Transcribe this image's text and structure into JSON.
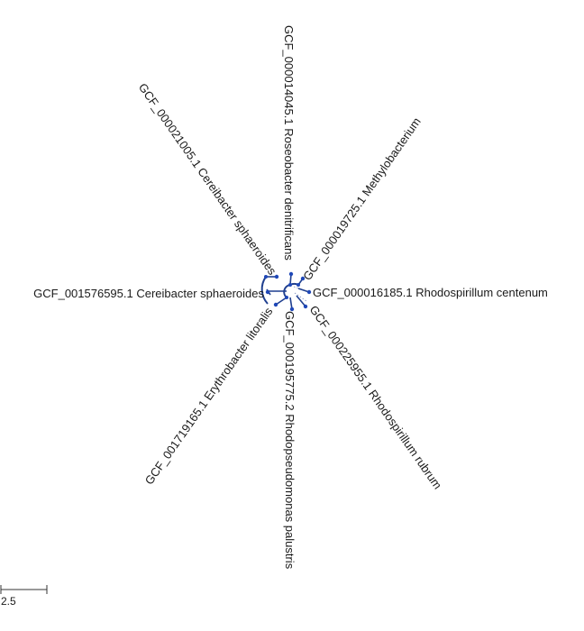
{
  "tree": {
    "leaves": [
      {
        "label": "GCF_000014045.1 Roseobacter denitrificans"
      },
      {
        "label": "GCF_000019725.1  Methylobacterium"
      },
      {
        "label": "GCF_000016185.1 Rhodospirillum centenum"
      },
      {
        "label": "GCF_000225955.1 Rhodospirillum rubrum"
      },
      {
        "label": "GCF_000195775.2 Rhodopseudomonas palustris"
      },
      {
        "label": "GCF_001719165.1 Erythrobacter litoralis"
      },
      {
        "label": "GCF_001576595.1 Cereibacter sphaeroides"
      },
      {
        "label": "GCF_000021005.1 Cereibacter sphaeroides"
      }
    ],
    "colors": {
      "branch": "#1f3f8f",
      "node": "#1f48b8",
      "text": "#1a1a1a"
    }
  },
  "scale_bar": {
    "label": "2.5"
  }
}
